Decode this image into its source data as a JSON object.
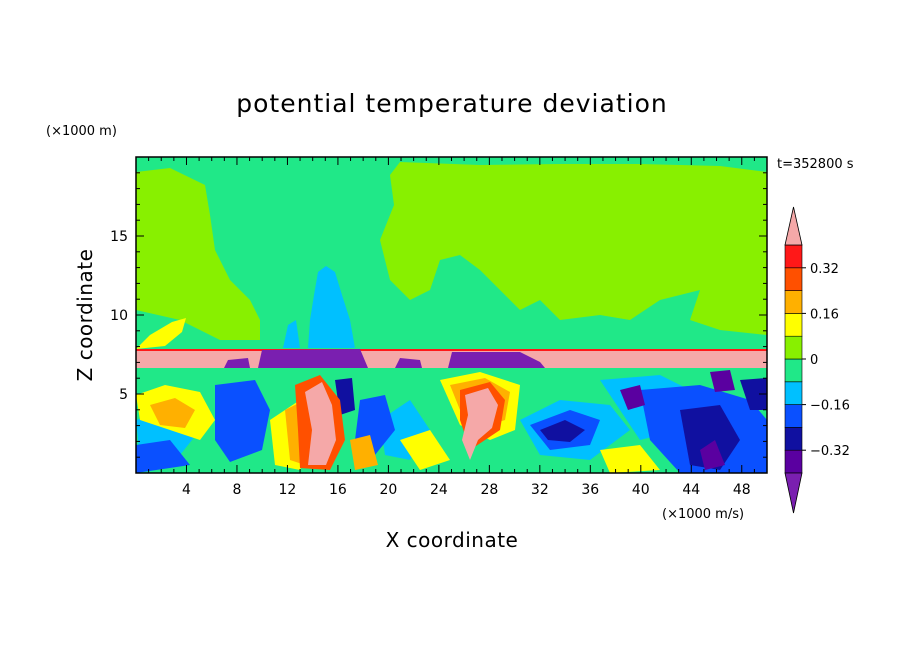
{
  "chart_data": {
    "type": "heatmap",
    "title": "potential temperature deviation",
    "xlabel": "X coordinate",
    "ylabel": "Z coordinate",
    "x_unit": "(×1000 m/s)",
    "y_unit": "(×1000 m)",
    "time_label": "t=352800 s",
    "xlim": [
      0,
      50
    ],
    "ylim": [
      0,
      20
    ],
    "x_ticks": [
      4,
      8,
      12,
      16,
      20,
      24,
      28,
      32,
      36,
      40,
      44,
      48
    ],
    "y_ticks": [
      5,
      10,
      15
    ],
    "colorbar": {
      "levels": [
        -0.4,
        -0.32,
        -0.24,
        -0.16,
        -0.08,
        0,
        0.08,
        0.16,
        0.24,
        0.32,
        0.4
      ],
      "labeled_levels": [
        0.32,
        0.16,
        0,
        -0.16,
        -0.32
      ],
      "labels": [
        "0.32",
        "0.16",
        "0",
        "−0.16",
        "−0.32"
      ],
      "colors": [
        "#7a1fb0",
        "#5a00a0",
        "#1010a0",
        "#0a50ff",
        "#00c0ff",
        "#20e888",
        "#88f000",
        "#ffff00",
        "#ffb000",
        "#ff5000",
        "#ff1818",
        "#f5a8a8"
      ],
      "extend": "both"
    },
    "regions": {
      "upper_layer_level": 0,
      "cap_layer_level": 0.4,
      "lower_layer": "mixed turbulent values from -0.4 to 0.4",
      "cap_height_range": [
        7.0,
        7.8
      ]
    }
  }
}
